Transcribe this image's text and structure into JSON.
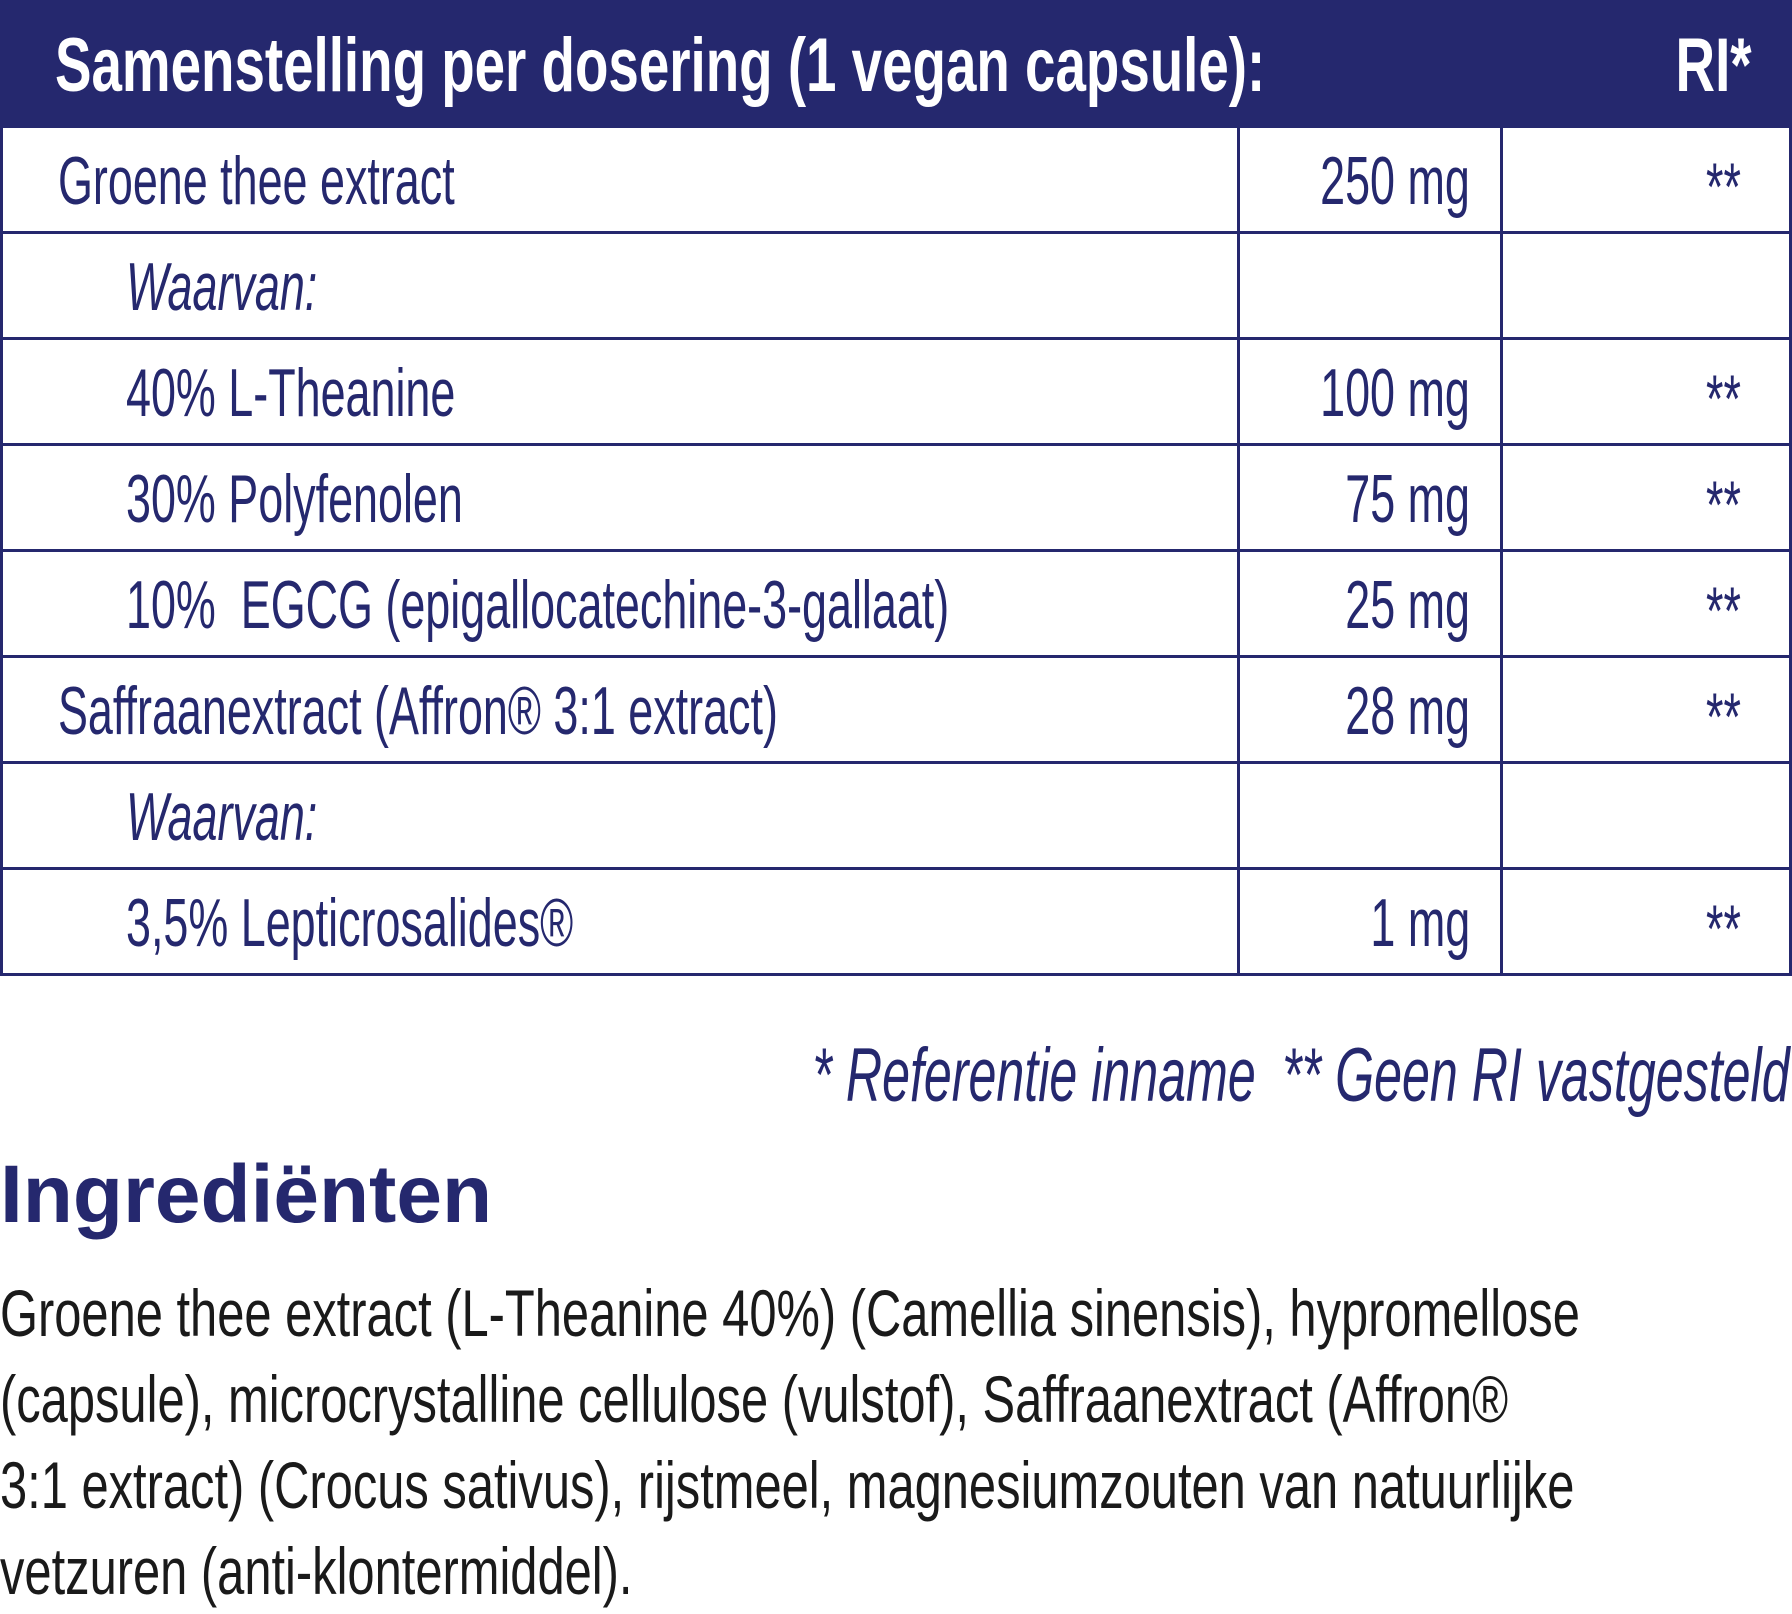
{
  "header": {
    "title": "Samenstelling per dosering (1 vegan capsule):",
    "ri": "RI*"
  },
  "rows": [
    {
      "name": "Groene thee extract",
      "amount": "250 mg",
      "ri": "**"
    },
    {
      "name": "Waarvan:",
      "amount": "",
      "ri": ""
    },
    {
      "name": "40% L-Theanine",
      "amount": "100 mg",
      "ri": "**"
    },
    {
      "name": "30% Polyfenolen",
      "amount": "75 mg",
      "ri": "**"
    },
    {
      "name": "10%  EGCG (epigallocatechine-3-gallaat)",
      "amount": "25 mg",
      "ri": "**"
    },
    {
      "name": "Saffraanextract (Affron® 3:1 extract)",
      "amount": "28 mg",
      "ri": "**"
    },
    {
      "name": "Waarvan:",
      "amount": "",
      "ri": ""
    },
    {
      "name": "3,5% Lepticrosalides®",
      "amount": "1 mg",
      "ri": "**"
    }
  ],
  "footnote": {
    "ri": "* Referentie inname",
    "no_ri": "** Geen RI vastgesteld"
  },
  "ingredients": {
    "title": "Ingrediënten",
    "lines": [
      "Groene thee extract (L-Theanine 40%) (Camellia sinensis), hypromellose",
      "(capsule), microcrystalline cellulose (vulstof), Saffraanextract (Affron®",
      "3:1 extract) (Crocus sativus), rijstmeel, magnesiumzouten van natuurlijke",
      "vetzuren (anti-klontermiddel)."
    ]
  },
  "colors": {
    "navy": "#25286e",
    "text": "#1a1a1a"
  }
}
